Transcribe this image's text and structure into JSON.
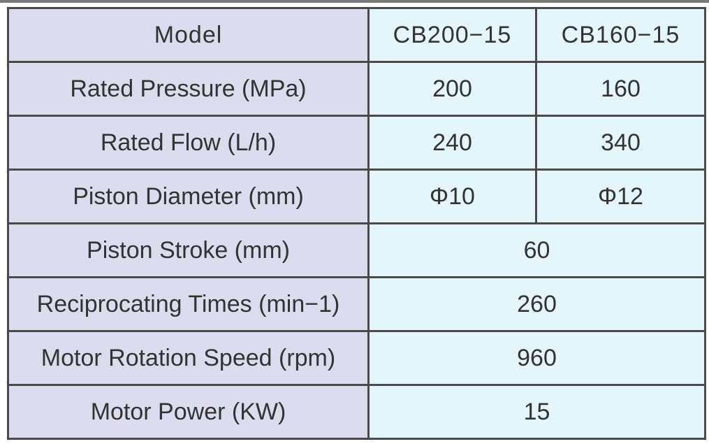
{
  "table": {
    "header": {
      "label": "Model",
      "models": [
        "CB200−15",
        "CB160−15"
      ]
    },
    "rows": [
      {
        "label": "Rated Pressure (MPa)",
        "values": [
          "200",
          "160"
        ]
      },
      {
        "label": "Rated Flow (L/h)",
        "values": [
          "240",
          "340"
        ]
      },
      {
        "label": "Piston Diameter (mm)",
        "values": [
          "Φ10",
          "Φ12"
        ]
      },
      {
        "label": "Piston Stroke (mm)",
        "shared": "60"
      },
      {
        "label": "Reciprocating Times (min−1)",
        "shared": "260"
      },
      {
        "label": "Motor Rotation Speed (rpm)",
        "shared": "960"
      },
      {
        "label": "Motor Power (KW)",
        "shared": "15"
      }
    ]
  },
  "colors": {
    "label_bg": "#dcdcef",
    "value_bg": "#e4f5fb",
    "border": "#4a4a4a",
    "text": "#333333"
  }
}
